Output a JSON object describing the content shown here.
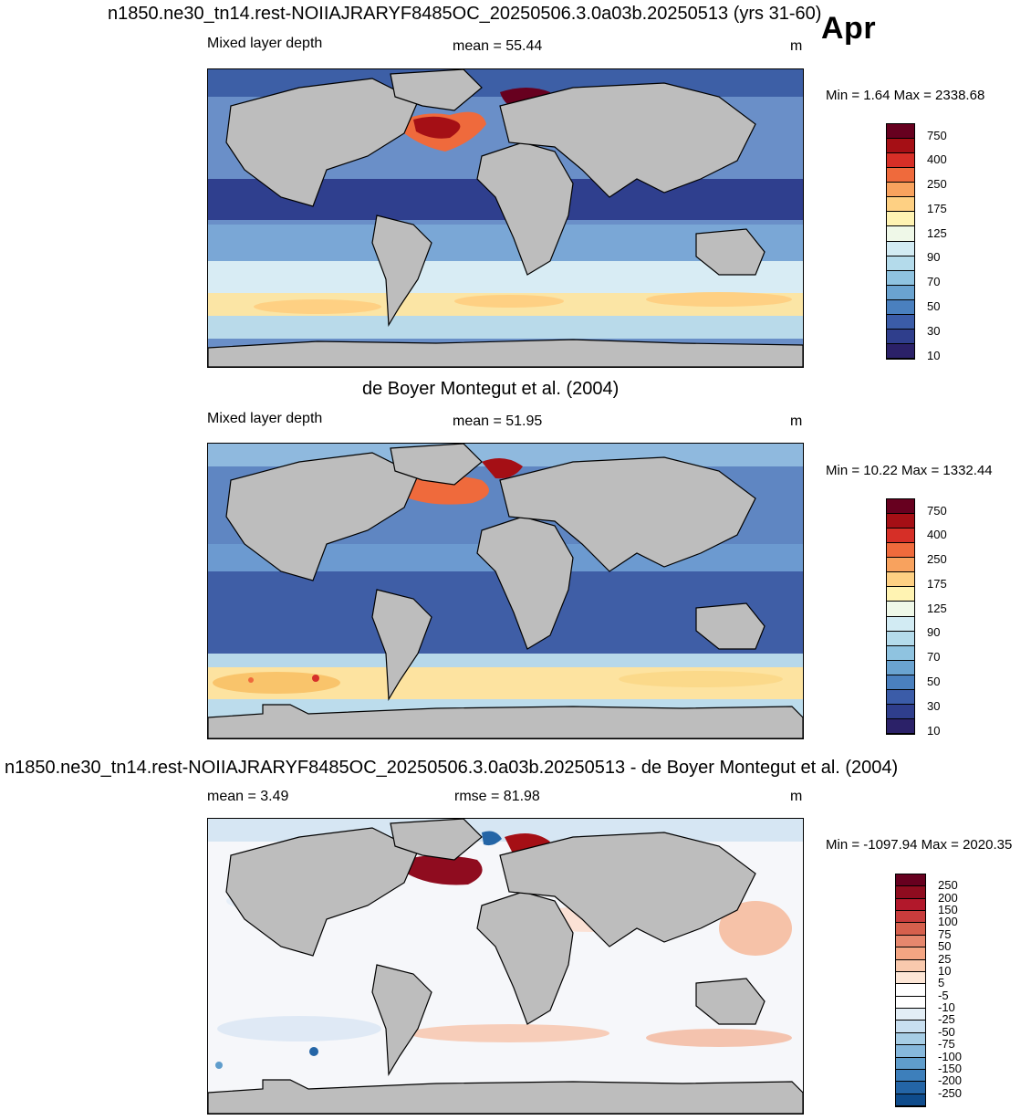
{
  "month": "Apr",
  "panels": [
    {
      "title": "n1850.ne30_tn14.rest-NOIIAJRARYF8485OC_20250506.3.0a03b.20250513 (yrs 31-60)",
      "left_label": "Mixed layer depth",
      "center_label": "mean =  55.44",
      "units": "m",
      "minmax": "Min =   1.64 Max = 2338.68",
      "colorbar_labels": [
        "750",
        "400",
        "250",
        "175",
        "125",
        "90",
        "70",
        "50",
        "30",
        "10"
      ],
      "colorbar_colors": [
        "#67001f",
        "#a50f15",
        "#d62f27",
        "#ef6a3c",
        "#f8a25e",
        "#fed083",
        "#fff3b2",
        "#eff8e8",
        "#d2ebf3",
        "#b4dbeb",
        "#8fc3e0",
        "#6aa3d0",
        "#4a80bf",
        "#3b5ca8",
        "#2f3e8c",
        "#2b2168"
      ]
    },
    {
      "title": "de Boyer Montegut et al. (2004)",
      "left_label": "Mixed layer depth",
      "center_label": "mean =  51.95",
      "units": "m",
      "minmax": "Min =  10.22 Max = 1332.44",
      "colorbar_labels": [
        "750",
        "400",
        "250",
        "175",
        "125",
        "90",
        "70",
        "50",
        "30",
        "10"
      ],
      "colorbar_colors": [
        "#67001f",
        "#a50f15",
        "#d62f27",
        "#ef6a3c",
        "#f8a25e",
        "#fed083",
        "#fff3b2",
        "#eff8e8",
        "#d2ebf3",
        "#b4dbeb",
        "#8fc3e0",
        "#6aa3d0",
        "#4a80bf",
        "#3b5ca8",
        "#2f3e8c",
        "#2b2168"
      ]
    },
    {
      "title": "n1850.ne30_tn14.rest-NOIIAJRARYF8485OC_20250506.3.0a03b.20250513 - de Boyer Montegut et al. (2004)",
      "left_label": "mean =   3.49",
      "center_label": "rmse =  81.98",
      "units": "m",
      "minmax": "Min = -1097.94 Max = 2020.35",
      "colorbar_labels": [
        "250",
        "200",
        "150",
        "100",
        "75",
        "50",
        "25",
        "10",
        "5",
        "-5",
        "-10",
        "-25",
        "-50",
        "-75",
        "-100",
        "-150",
        "-200",
        "-250"
      ],
      "colorbar_colors": [
        "#67001f",
        "#8f0c1f",
        "#b2182b",
        "#c83c3c",
        "#d6604d",
        "#e6876d",
        "#f4a582",
        "#f9c9ad",
        "#fde6d6",
        "#ffffff",
        "#ffffff",
        "#e3eef6",
        "#c8dff0",
        "#a6cde5",
        "#86b8dc",
        "#5f9dcc",
        "#3d7fbb",
        "#2465a6",
        "#0f4c8c"
      ]
    }
  ]
}
